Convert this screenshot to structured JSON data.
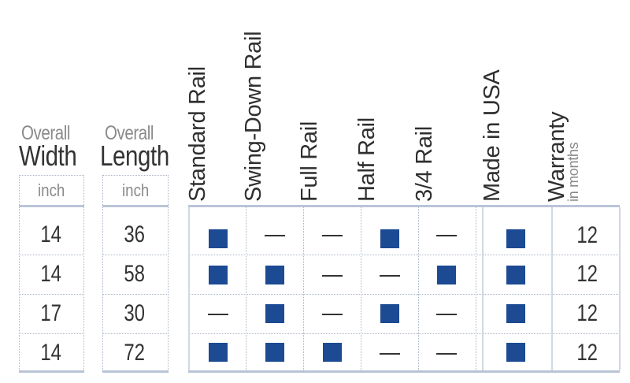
{
  "left_headers": {
    "width": {
      "top": "Overall",
      "main": "Width",
      "unit": "inch"
    },
    "length": {
      "top": "Overall",
      "main": "Length",
      "unit": "inch"
    }
  },
  "columns": [
    {
      "label": "Standard Rail"
    },
    {
      "label": "Swing-Down Rail"
    },
    {
      "label": "Full Rail"
    },
    {
      "label": "Half Rail"
    },
    {
      "label": "3/4 Rail"
    },
    {
      "label": "Made in USA"
    },
    {
      "label": "Warranty",
      "sub": "in months"
    }
  ],
  "rows": [
    {
      "width": "14",
      "length": "36",
      "features": [
        true,
        false,
        false,
        true,
        false,
        true
      ],
      "warranty": "12"
    },
    {
      "width": "14",
      "length": "58",
      "features": [
        true,
        true,
        false,
        false,
        true,
        true
      ],
      "warranty": "12"
    },
    {
      "width": "17",
      "length": "30",
      "features": [
        false,
        true,
        false,
        true,
        false,
        true
      ],
      "warranty": "12"
    },
    {
      "width": "14",
      "length": "72",
      "features": [
        true,
        true,
        true,
        false,
        false,
        true
      ],
      "warranty": "12"
    }
  ],
  "colors": {
    "marker": "#1c4a93",
    "rule": "#b9c4d6"
  }
}
